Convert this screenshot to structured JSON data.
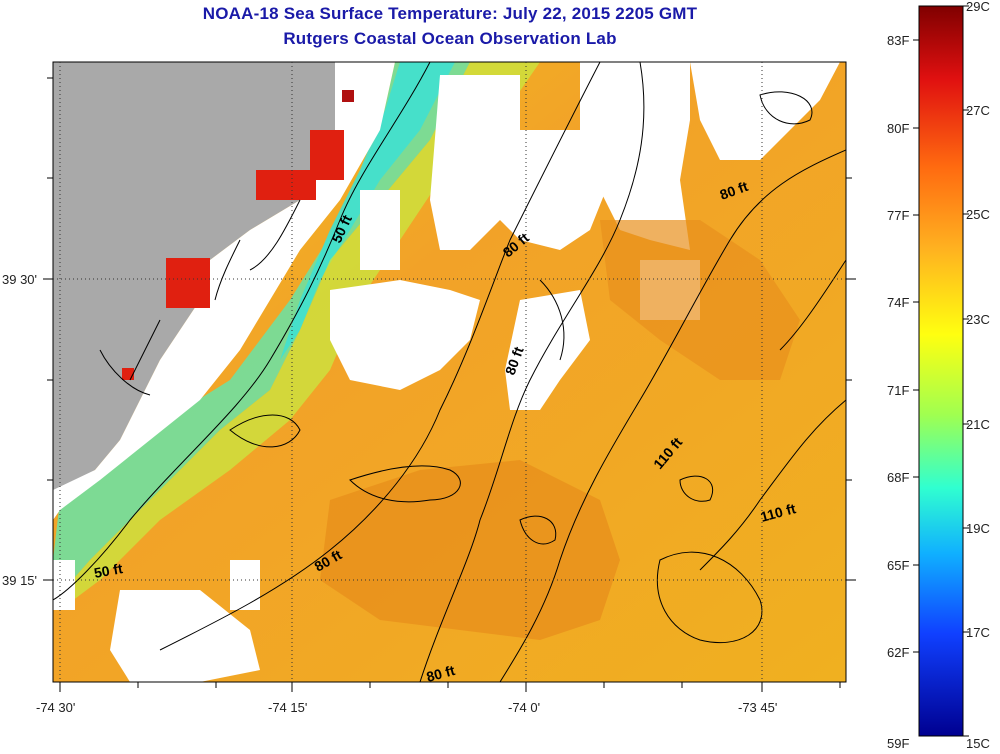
{
  "title": "NOAA-18 Sea Surface Temperature:  July 22, 2015 2205 GMT",
  "subtitle": "Rutgers Coastal Ocean Observation Lab",
  "lon_ticks": [
    "-74 30'",
    "-74 15'",
    "-74 0'",
    "-73 45'"
  ],
  "lat_ticks": [
    "39 30'",
    "39 15'"
  ],
  "contour_labels": [
    "50 ft",
    "50 ft",
    "80 ft",
    "80 ft",
    "80 ft",
    "80 ft",
    "80 ft",
    "110 ft",
    "110 ft"
  ],
  "colorbar": {
    "fahrenheit": [
      "83F",
      "80F",
      "77F",
      "74F",
      "71F",
      "68F",
      "65F",
      "62F",
      "59F"
    ],
    "celsius": [
      "29C",
      "27C",
      "25C",
      "23C",
      "21C",
      "19C",
      "17C",
      "15C"
    ]
  },
  "colors": {
    "title": "#1a1aa8",
    "land": "#a9a9a9",
    "cloud": "#ffffff",
    "warm_sst": "#f0a020",
    "cool_sst": "#50e0b0"
  }
}
